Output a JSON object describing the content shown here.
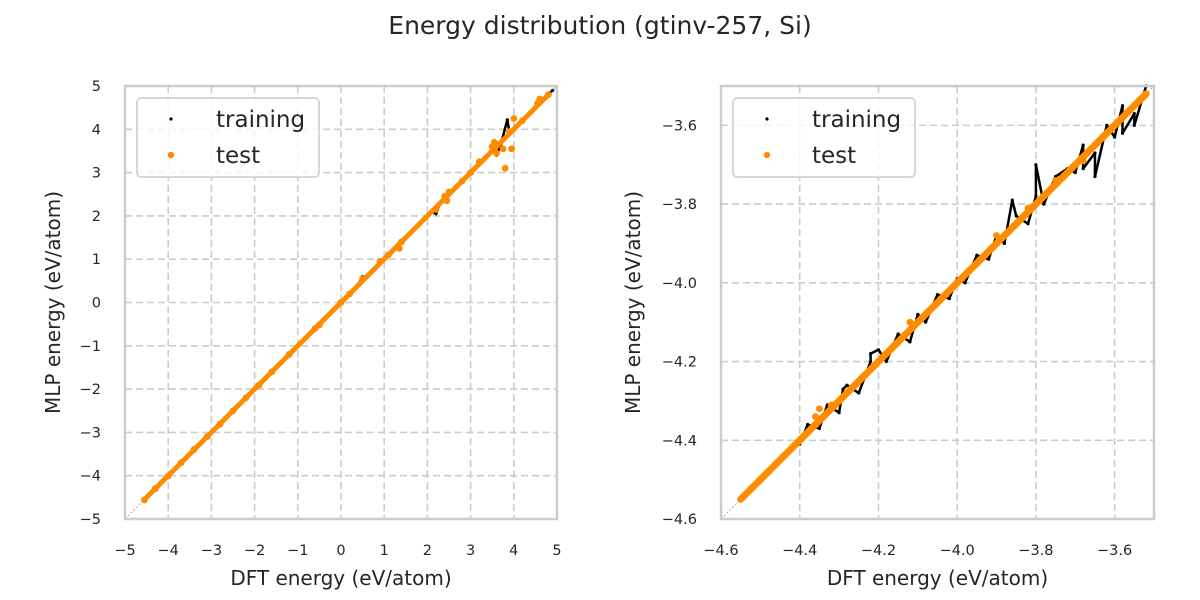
{
  "chart_data": {
    "title": "Energy distribution (gtinv-257, Si)",
    "panels": [
      {
        "type": "scatter",
        "xlabel": "DFT energy (eV/atom)",
        "ylabel": "MLP energy (eV/atom)",
        "xlim": [
          -5,
          5
        ],
        "ylim": [
          -5,
          5
        ],
        "xticks": [
          -5,
          -4,
          -3,
          -2,
          -1,
          0,
          1,
          2,
          3,
          4,
          5
        ],
        "yticks": [
          -5,
          -4,
          -3,
          -2,
          -1,
          0,
          1,
          2,
          3,
          4,
          5
        ],
        "xtick_labels": [
          "−5",
          "−4",
          "−3",
          "−2",
          "−1",
          "0",
          "1",
          "2",
          "3",
          "4",
          "5"
        ],
        "ytick_labels": [
          "−5",
          "−4",
          "−3",
          "−2",
          "−1",
          "0",
          "1",
          "2",
          "3",
          "4",
          "5"
        ],
        "grid": true,
        "legend": {
          "placement": "upper-left",
          "entries": [
            "training",
            "test"
          ]
        },
        "reference_line": "y = x (dotted grey)",
        "series": [
          {
            "name": "training",
            "color": "#000000",
            "points": [
              [
                -4.55,
                -4.55
              ],
              [
                -4.4,
                -4.41
              ],
              [
                -4.2,
                -4.19
              ],
              [
                -4.0,
                -4.0
              ],
              [
                -3.8,
                -3.81
              ],
              [
                -3.5,
                -3.5
              ],
              [
                -3.2,
                -3.21
              ],
              [
                -3.0,
                -3.0
              ],
              [
                -2.7,
                -2.69
              ],
              [
                -2.4,
                -2.41
              ],
              [
                -2.1,
                -2.1
              ],
              [
                -1.8,
                -1.8
              ],
              [
                -1.5,
                -1.49
              ],
              [
                -1.3,
                -1.31
              ],
              [
                -1.0,
                -1.0
              ],
              [
                -0.8,
                -0.79
              ],
              [
                -0.4,
                -0.41
              ],
              [
                -0.2,
                -0.2
              ],
              [
                0.1,
                0.1
              ],
              [
                0.4,
                0.41
              ],
              [
                0.6,
                0.58
              ],
              [
                0.8,
                0.82
              ],
              [
                1.0,
                1.0
              ],
              [
                1.3,
                1.31
              ],
              [
                1.6,
                1.58
              ],
              [
                1.9,
                1.92
              ],
              [
                2.1,
                2.1
              ],
              [
                2.3,
                2.32
              ],
              [
                2.5,
                2.48
              ],
              [
                2.7,
                2.7
              ],
              [
                2.9,
                2.92
              ],
              [
                3.1,
                3.08
              ],
              [
                3.3,
                3.3
              ],
              [
                3.5,
                3.52
              ],
              [
                3.7,
                3.65
              ],
              [
                3.9,
                3.93
              ],
              [
                4.1,
                4.08
              ],
              [
                4.3,
                4.32
              ],
              [
                4.5,
                4.5
              ],
              [
                4.7,
                4.72
              ],
              [
                4.9,
                4.9
              ],
              [
                3.85,
                4.22
              ],
              [
                3.6,
                3.4
              ],
              [
                2.2,
                2.05
              ],
              [
                0.5,
                0.6
              ]
            ]
          },
          {
            "name": "test",
            "color": "#ff8c00",
            "points": [
              [
                -4.55,
                -4.56
              ],
              [
                -4.3,
                -4.3
              ],
              [
                -4.0,
                -4.01
              ],
              [
                -3.7,
                -3.7
              ],
              [
                -3.4,
                -3.39
              ],
              [
                -3.1,
                -3.1
              ],
              [
                -2.8,
                -2.81
              ],
              [
                -2.5,
                -2.5
              ],
              [
                -2.2,
                -2.2
              ],
              [
                -1.9,
                -1.91
              ],
              [
                -1.6,
                -1.6
              ],
              [
                -1.2,
                -1.2
              ],
              [
                -0.6,
                -0.6
              ],
              [
                -0.5,
                -0.52
              ],
              [
                0.0,
                0.0
              ],
              [
                0.2,
                0.2
              ],
              [
                0.5,
                0.55
              ],
              [
                0.9,
                0.95
              ],
              [
                1.1,
                1.1
              ],
              [
                1.4,
                1.4
              ],
              [
                1.35,
                1.25
              ],
              [
                2.2,
                2.15
              ],
              [
                2.4,
                2.45
              ],
              [
                2.5,
                2.55
              ],
              [
                2.45,
                2.35
              ],
              [
                2.8,
                2.8
              ],
              [
                3.0,
                3.0
              ],
              [
                3.2,
                3.25
              ],
              [
                3.5,
                3.6
              ],
              [
                3.55,
                3.7
              ],
              [
                3.6,
                3.45
              ],
              [
                3.75,
                3.55
              ],
              [
                3.9,
                3.95
              ],
              [
                4.0,
                4.25
              ],
              [
                4.2,
                4.2
              ],
              [
                4.55,
                4.6
              ],
              [
                4.6,
                4.7
              ],
              [
                4.8,
                4.8
              ],
              [
                3.8,
                3.1
              ],
              [
                3.95,
                3.55
              ]
            ]
          }
        ]
      },
      {
        "type": "scatter",
        "xlabel": "DFT energy (eV/atom)",
        "ylabel": "MLP energy (eV/atom)",
        "xlim": [
          -4.6,
          -3.5
        ],
        "ylim": [
          -4.6,
          -3.5
        ],
        "xticks": [
          -4.6,
          -4.4,
          -4.2,
          -4.0,
          -3.8,
          -3.6
        ],
        "yticks": [
          -4.6,
          -4.4,
          -4.2,
          -4.0,
          -3.8,
          -3.6
        ],
        "xtick_labels": [
          "−4.6",
          "−4.4",
          "−4.2",
          "−4.0",
          "−3.8",
          "−3.6"
        ],
        "ytick_labels": [
          "−4.6",
          "−4.4",
          "−4.2",
          "−4.0",
          "−3.8",
          "−3.6"
        ],
        "grid": true,
        "legend": {
          "placement": "upper-left",
          "entries": [
            "training",
            "test"
          ]
        },
        "reference_line": "y = x (dotted grey)",
        "series": [
          {
            "name": "training",
            "color": "#000000",
            "points": [
              [
                -4.4,
                -4.41
              ],
              [
                -4.38,
                -4.36
              ],
              [
                -4.35,
                -4.37
              ],
              [
                -4.33,
                -4.31
              ],
              [
                -4.3,
                -4.33
              ],
              [
                -4.28,
                -4.26
              ],
              [
                -4.25,
                -4.28
              ],
              [
                -4.22,
                -4.2
              ],
              [
                -4.2,
                -4.17
              ],
              [
                -4.18,
                -4.2
              ],
              [
                -4.15,
                -4.13
              ],
              [
                -4.12,
                -4.15
              ],
              [
                -4.1,
                -4.08
              ],
              [
                -4.08,
                -4.1
              ],
              [
                -4.05,
                -4.03
              ],
              [
                -4.02,
                -4.04
              ],
              [
                -4.0,
                -3.99
              ],
              [
                -3.98,
                -4.0
              ],
              [
                -3.95,
                -3.93
              ],
              [
                -3.92,
                -3.94
              ],
              [
                -3.9,
                -3.88
              ],
              [
                -3.88,
                -3.9
              ],
              [
                -3.85,
                -3.83
              ],
              [
                -3.82,
                -3.85
              ],
              [
                -3.8,
                -3.78
              ],
              [
                -3.78,
                -3.8
              ],
              [
                -3.75,
                -3.73
              ],
              [
                -3.72,
                -3.71
              ],
              [
                -3.7,
                -3.72
              ],
              [
                -3.68,
                -3.65
              ],
              [
                -3.65,
                -3.67
              ],
              [
                -3.62,
                -3.6
              ],
              [
                -3.6,
                -3.63
              ],
              [
                -3.58,
                -3.55
              ],
              [
                -3.55,
                -3.57
              ],
              [
                -3.52,
                -3.5
              ],
              [
                -3.8,
                -3.7
              ],
              [
                -3.68,
                -3.71
              ],
              [
                -3.65,
                -3.73
              ],
              [
                -3.58,
                -3.62
              ],
              [
                -3.55,
                -3.6
              ],
              [
                -4.29,
                -4.27
              ],
              [
                -4.22,
                -4.18
              ],
              [
                -3.86,
                -3.79
              ]
            ]
          },
          {
            "name": "test",
            "color": "#ff8c00",
            "points": [
              [
                -4.55,
                -4.55
              ],
              [
                -4.53,
                -4.53
              ],
              [
                -4.5,
                -4.5
              ],
              [
                -4.48,
                -4.48
              ],
              [
                -4.45,
                -4.45
              ],
              [
                -4.43,
                -4.43
              ],
              [
                -4.4,
                -4.4
              ],
              [
                -4.36,
                -4.34
              ],
              [
                -4.35,
                -4.32
              ],
              [
                -4.32,
                -4.31
              ],
              [
                -4.3,
                -4.3
              ],
              [
                -4.26,
                -4.26
              ],
              [
                -4.2,
                -4.2
              ],
              [
                -4.15,
                -4.15
              ],
              [
                -4.1,
                -4.1
              ],
              [
                -4.05,
                -4.05
              ],
              [
                -4.0,
                -4.0
              ],
              [
                -3.95,
                -3.95
              ],
              [
                -3.9,
                -3.9
              ],
              [
                -3.85,
                -3.85
              ],
              [
                -3.8,
                -3.8
              ],
              [
                -3.75,
                -3.75
              ],
              [
                -3.7,
                -3.7
              ],
              [
                -3.65,
                -3.65
              ],
              [
                -3.6,
                -3.6
              ],
              [
                -3.55,
                -3.55
              ],
              [
                -3.52,
                -3.52
              ],
              [
                -3.75,
                -3.74
              ],
              [
                -3.82,
                -3.81
              ],
              [
                -3.68,
                -3.69
              ],
              [
                -3.62,
                -3.62
              ],
              [
                -4.12,
                -4.1
              ],
              [
                -3.9,
                -3.88
              ]
            ]
          }
        ]
      }
    ]
  }
}
